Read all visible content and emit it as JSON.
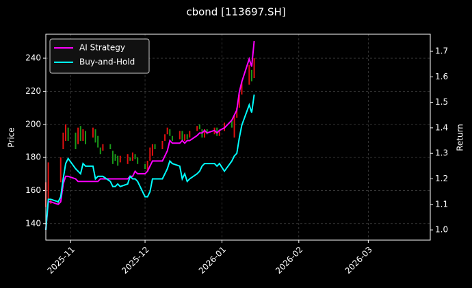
{
  "chart_data": {
    "type": "line",
    "title": "cbond [113697.SH]",
    "ylabel": "Price",
    "y2label": "Return",
    "x": [
      "2025-10-22",
      "2025-10-23",
      "2025-10-24",
      "2025-10-27",
      "2025-10-28",
      "2025-10-29",
      "2025-10-30",
      "2025-10-31",
      "2025-11-03",
      "2025-11-04",
      "2025-11-05",
      "2025-11-06",
      "2025-11-07",
      "2025-11-10",
      "2025-11-11",
      "2025-11-12",
      "2025-11-13",
      "2025-11-14",
      "2025-11-17",
      "2025-11-18",
      "2025-11-19",
      "2025-11-20",
      "2025-11-21",
      "2025-11-24",
      "2025-11-25",
      "2025-11-26",
      "2025-11-27",
      "2025-11-28",
      "2025-12-01",
      "2025-12-02",
      "2025-12-03",
      "2025-12-04",
      "2025-12-05",
      "2025-12-08",
      "2025-12-09",
      "2025-12-10",
      "2025-12-11",
      "2025-12-12",
      "2025-12-15",
      "2025-12-16",
      "2025-12-17",
      "2025-12-18",
      "2025-12-19",
      "2025-12-22",
      "2025-12-23",
      "2025-12-24",
      "2025-12-25",
      "2025-12-26",
      "2025-12-29",
      "2025-12-30",
      "2025-12-31",
      "2026-01-02",
      "2026-01-05",
      "2026-01-06",
      "2026-01-07",
      "2026-01-08",
      "2026-01-09",
      "2026-01-12",
      "2026-01-13",
      "2026-01-14"
    ],
    "series": [
      {
        "type": "candlestick",
        "axis": "y",
        "up_color": "#e01010",
        "down_color": "#1a9a1a",
        "open": [
          150,
          155,
          152,
          154,
          165,
          185,
          190,
          198,
          195,
          188,
          199,
          190,
          196,
          192,
          197,
          193,
          186,
          184,
          188,
          184,
          182,
          181,
          177,
          176,
          180,
          178,
          182,
          180,
          176,
          172,
          178,
          181,
          188,
          185,
          190,
          194,
          197,
          193,
          191,
          196,
          190,
          194,
          192,
          196,
          200,
          197,
          192,
          197,
          194,
          198,
          193,
          196,
          202,
          192,
          204,
          210,
          218,
          224,
          233,
          228
        ],
        "close": [
          165,
          177,
          155,
          152,
          180,
          195,
          200,
          190,
          185,
          198,
          190,
          197,
          188,
          198,
          189,
          186,
          182,
          188,
          185,
          176,
          178,
          175,
          181,
          182,
          178,
          183,
          179,
          176,
          173,
          178,
          186,
          188,
          185,
          190,
          194,
          198,
          193,
          190,
          196,
          190,
          194,
          191,
          196,
          199,
          197,
          192,
          197,
          194,
          198,
          193,
          196,
          201,
          198,
          205,
          210,
          218,
          226,
          236,
          226,
          240
        ]
      },
      {
        "type": "line",
        "name": "AI Strategy",
        "color": "#ff00ff",
        "axis": "y2",
        "values": [
          1.0,
          1.11,
          1.11,
          1.1,
          1.11,
          1.18,
          1.21,
          1.21,
          1.2,
          1.19,
          1.19,
          1.19,
          1.19,
          1.19,
          1.19,
          1.19,
          1.2,
          1.2,
          1.2,
          1.2,
          1.2,
          1.2,
          1.2,
          1.2,
          1.21,
          1.21,
          1.23,
          1.22,
          1.22,
          1.23,
          1.25,
          1.27,
          1.27,
          1.27,
          1.29,
          1.31,
          1.35,
          1.34,
          1.34,
          1.35,
          1.34,
          1.35,
          1.35,
          1.37,
          1.38,
          1.38,
          1.39,
          1.38,
          1.39,
          1.38,
          1.39,
          1.4,
          1.43,
          1.45,
          1.47,
          1.54,
          1.58,
          1.67,
          1.64,
          1.74
        ]
      },
      {
        "type": "line",
        "name": "Buy-and-Hold",
        "color": "#00ffff",
        "axis": "y2",
        "values": [
          1.0,
          1.12,
          1.12,
          1.11,
          1.13,
          1.2,
          1.26,
          1.28,
          1.24,
          1.23,
          1.22,
          1.26,
          1.25,
          1.25,
          1.2,
          1.21,
          1.21,
          1.21,
          1.19,
          1.17,
          1.17,
          1.18,
          1.17,
          1.18,
          1.21,
          1.2,
          1.2,
          1.19,
          1.13,
          1.13,
          1.15,
          1.2,
          1.2,
          1.2,
          1.22,
          1.24,
          1.27,
          1.26,
          1.25,
          1.2,
          1.22,
          1.19,
          1.2,
          1.22,
          1.23,
          1.25,
          1.26,
          1.26,
          1.26,
          1.25,
          1.26,
          1.23,
          1.27,
          1.29,
          1.3,
          1.36,
          1.41,
          1.49,
          1.46,
          1.53
        ]
      }
    ],
    "xlim": [
      "2025-10-22",
      "2026-03-26"
    ],
    "xticks": [
      {
        "value": "2025-11-01",
        "label": "2025-11"
      },
      {
        "value": "2025-12-01",
        "label": "2025-12"
      },
      {
        "value": "2026-01-01",
        "label": "2026-01"
      },
      {
        "value": "2026-02-01",
        "label": "2026-02"
      },
      {
        "value": "2026-03-01",
        "label": "2026-03"
      }
    ],
    "ylim": [
      130,
      254.5
    ],
    "yticks": [
      140,
      160,
      180,
      200,
      220,
      240
    ],
    "y2lim": [
      0.96,
      1.767
    ],
    "y2ticks": [
      {
        "value": 1,
        "label": "1.0"
      },
      1.1,
      1.2,
      1.3,
      1.4,
      1.5,
      1.6,
      1.7
    ],
    "grid": true,
    "legend": "upper left"
  }
}
